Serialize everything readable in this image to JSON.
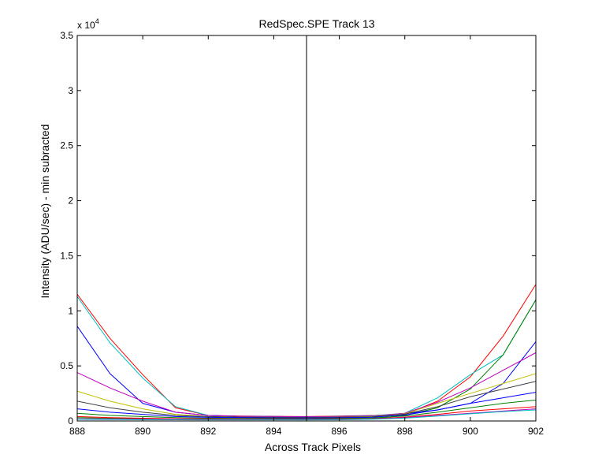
{
  "chart_data": {
    "type": "line",
    "title": "RedSpec.SPE   Track 13",
    "xlabel": "Across Track Pixels",
    "ylabel": "Intensity (ADU/sec) - min subracted",
    "xlim": [
      888,
      902
    ],
    "ylim": [
      0,
      35000
    ],
    "xticks": [
      888,
      890,
      892,
      894,
      896,
      898,
      900,
      902
    ],
    "yticks": [
      0,
      5000,
      10000,
      15000,
      20000,
      25000,
      30000,
      35000
    ],
    "ytick_labels": [
      "0",
      "0.5",
      "1",
      "1.5",
      "2",
      "2.5",
      "3",
      "3.5"
    ],
    "y_multiplier_base": "x 10",
    "y_multiplier_exp": "4",
    "grid": false,
    "vline_x": 895,
    "x": [
      888,
      889,
      890,
      891,
      892,
      893,
      894,
      895,
      896,
      897,
      898,
      899,
      900,
      901,
      902
    ],
    "series": [
      {
        "color": "#ff0000",
        "values": [
          11500,
          7500,
          4200,
          1200,
          500,
          450,
          420,
          400,
          450,
          500,
          600,
          1800,
          4000,
          7700,
          12400
        ]
      },
      {
        "color": "#00bfbf",
        "values": [
          11300,
          7100,
          3900,
          1300,
          500,
          420,
          400,
          380,
          420,
          480,
          700,
          2100,
          4200,
          6000,
          11000
        ]
      },
      {
        "color": "#007f00",
        "values": [
          300,
          250,
          200,
          180,
          170,
          160,
          150,
          150,
          160,
          200,
          500,
          1200,
          2900,
          6000,
          11000
        ]
      },
      {
        "color": "#0000ff",
        "values": [
          8600,
          4300,
          1600,
          800,
          500,
          420,
          400,
          380,
          400,
          450,
          650,
          1000,
          1600,
          3400,
          7200
        ]
      },
      {
        "color": "#bf00bf",
        "values": [
          4400,
          3000,
          1800,
          800,
          500,
          420,
          400,
          380,
          400,
          450,
          700,
          1700,
          3000,
          4600,
          6200
        ]
      },
      {
        "color": "#bfbf00",
        "values": [
          2700,
          1800,
          1100,
          600,
          400,
          350,
          330,
          320,
          350,
          400,
          650,
          1600,
          2500,
          3400,
          4300
        ]
      },
      {
        "color": "#404040",
        "values": [
          1800,
          1200,
          800,
          500,
          400,
          350,
          330,
          320,
          340,
          380,
          620,
          1300,
          2200,
          2900,
          3600
        ]
      },
      {
        "color": "#0000ff",
        "values": [
          1100,
          800,
          600,
          400,
          330,
          300,
          280,
          270,
          290,
          330,
          550,
          1000,
          1600,
          2100,
          2600
        ]
      },
      {
        "color": "#007f00",
        "values": [
          700,
          500,
          400,
          300,
          250,
          230,
          220,
          210,
          230,
          270,
          450,
          800,
          1200,
          1600,
          1900
        ]
      },
      {
        "color": "#ff0000",
        "values": [
          400,
          300,
          250,
          200,
          180,
          170,
          160,
          160,
          170,
          200,
          350,
          600,
          900,
          1100,
          1300
        ]
      },
      {
        "color": "#bf00bf",
        "values": [
          200,
          180,
          160,
          150,
          140,
          130,
          130,
          130,
          140,
          180,
          300,
          500,
          700,
          900,
          1100
        ]
      },
      {
        "color": "#00bfbf",
        "values": [
          150,
          130,
          120,
          110,
          100,
          100,
          100,
          100,
          110,
          150,
          250,
          450,
          650,
          850,
          1000
        ]
      }
    ]
  }
}
